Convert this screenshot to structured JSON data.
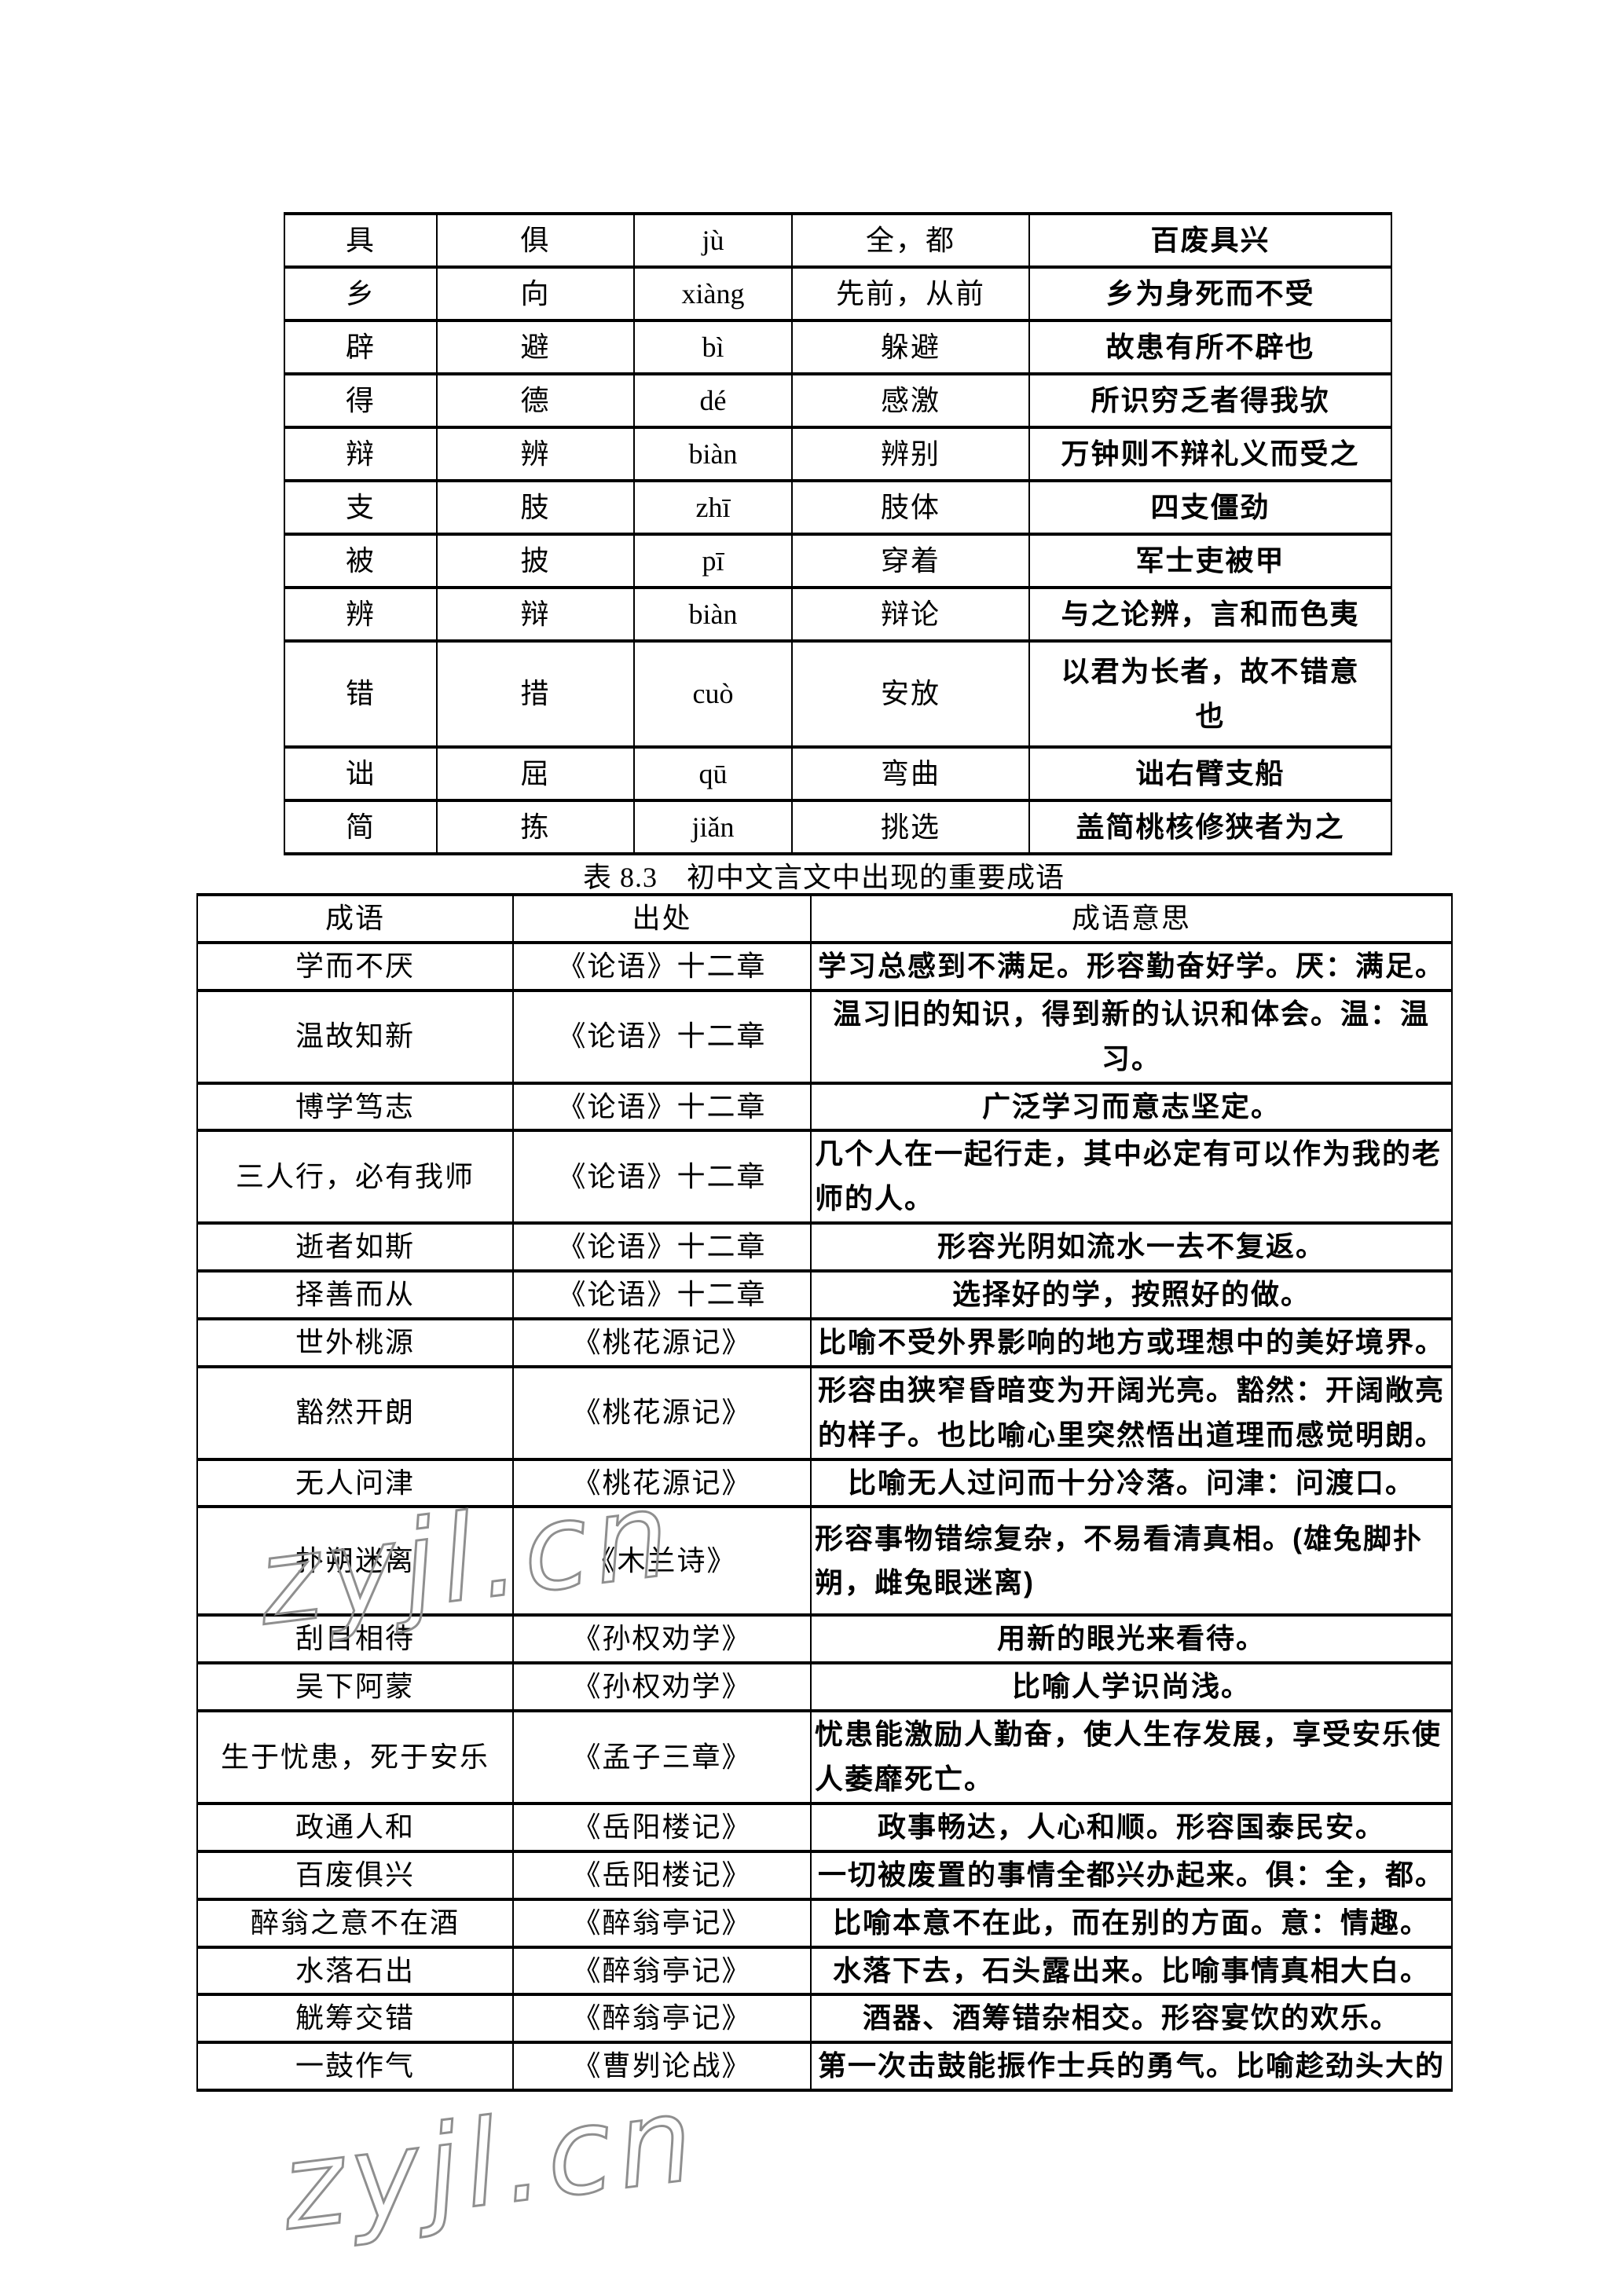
{
  "colors": {
    "background": "#ffffff",
    "text": "#000000",
    "border": "#000000",
    "watermark": "#8f8f8f"
  },
  "table1": {
    "rows": [
      [
        "具",
        "俱",
        "jù",
        "全，都",
        "百废具兴"
      ],
      [
        "乡",
        "向",
        "xiàng",
        "先前，从前",
        "乡为身死而不受"
      ],
      [
        "辟",
        "避",
        "bì",
        "躲避",
        "故患有所不辟也"
      ],
      [
        "得",
        "德",
        "dé",
        "感激",
        "所识穷乏者得我欤"
      ],
      [
        "辩",
        "辨",
        "biàn",
        "辨别",
        "万钟则不辩礼义而受之"
      ],
      [
        "支",
        "肢",
        "zhī",
        "肢体",
        "四支僵劲"
      ],
      [
        "被",
        "披",
        "pī",
        "穿着",
        "军士吏被甲"
      ],
      [
        "辨",
        "辩",
        "biàn",
        "辩论",
        "与之论辨，言和而色夷"
      ],
      [
        "错",
        "措",
        "cuò",
        "安放",
        "以君为长者，故不错意\n也"
      ],
      [
        "诎",
        "屈",
        "qū",
        "弯曲",
        "诎右臂支船"
      ],
      [
        "简",
        "拣",
        "jiǎn",
        "挑选",
        "盖简桃核修狭者为之"
      ]
    ]
  },
  "caption": "表 8.3　初中文言文中出现的重要成语",
  "table2": {
    "headers": [
      "成语",
      "出处",
      "成语意思"
    ],
    "rows": [
      [
        "学而不厌",
        "《论语》十二章",
        "学习总感到不满足。形容勤奋好学。厌：满足。"
      ],
      [
        "温故知新",
        "《论语》十二章",
        "温习旧的知识，得到新的认识和体会。温：温\n习。"
      ],
      [
        "博学笃志",
        "《论语》十二章",
        "广泛学习而意志坚定。"
      ],
      [
        "三人行，必有我师",
        "《论语》十二章",
        "几个人在一起行走，其中必定有可以作为我的老\n师的人。"
      ],
      [
        "逝者如斯",
        "《论语》十二章",
        "形容光阴如流水一去不复返。"
      ],
      [
        "择善而从",
        "《论语》十二章",
        "选择好的学，按照好的做。"
      ],
      [
        "世外桃源",
        "《桃花源记》",
        "比喻不受外界影响的地方或理想中的美好境界。"
      ],
      [
        "豁然开朗",
        "《桃花源记》",
        "形容由狭窄昏暗变为开阔光亮。豁然：开阔敞亮\n的样子。也比喻心里突然悟出道理而感觉明朗。"
      ],
      [
        "无人问津",
        "《桃花源记》",
        "比喻无人过问而十分冷落。问津：问渡口。"
      ],
      [
        "扑朔迷离",
        "《木兰诗》",
        "形容事物错综复杂，不易看清真相。(雄兔脚扑\n朔，雌兔眼迷离)"
      ],
      [
        "刮目相待",
        "《孙权劝学》",
        "用新的眼光来看待。"
      ],
      [
        "吴下阿蒙",
        "《孙权劝学》",
        "比喻人学识尚浅。"
      ],
      [
        "生于忧患，死于安乐",
        "《孟子三章》",
        "忧患能激励人勤奋，使人生存发展，享受安乐使\n人萎靡死亡。"
      ],
      [
        "政通人和",
        "《岳阳楼记》",
        "政事畅达，人心和顺。形容国泰民安。"
      ],
      [
        "百废俱兴",
        "《岳阳楼记》",
        "一切被废置的事情全都兴办起来。俱：全，都。"
      ],
      [
        "醉翁之意不在酒",
        "《醉翁亭记》",
        "比喻本意不在此，而在别的方面。意：情趣。"
      ],
      [
        "水落石出",
        "《醉翁亭记》",
        "水落下去，石头露出来。比喻事情真相大白。"
      ],
      [
        "觥筹交错",
        "《醉翁亭记》",
        "酒器、酒筹错杂相交。形容宴饮的欢乐。"
      ],
      [
        "一鼓作气",
        "《曹刿论战》",
        "第一次击鼓能振作士兵的勇气。比喻趁劲头大的"
      ]
    ]
  },
  "watermarks": {
    "middle": "zyjl.cn",
    "bottom": "zyjl.cn"
  }
}
